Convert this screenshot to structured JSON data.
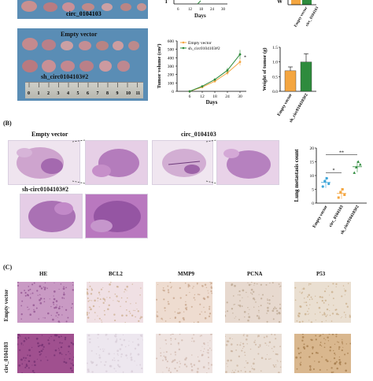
{
  "panel_labels": {
    "b": "(B)",
    "c": "(C)"
  },
  "panelA": {
    "photo_label_top": "circ_0104103",
    "photo_label_mid_1": "Empty vector",
    "photo_label_mid_2": "sh_circ0104103#2",
    "ruler_ticks": [
      "0",
      "1",
      "2",
      "3",
      "4",
      "5",
      "6",
      "7",
      "8",
      "9",
      "10",
      "11"
    ],
    "top_chart_partial": {
      "xlabel": "Days",
      "ticks": [
        "6",
        "12",
        "18",
        "24",
        "30"
      ],
      "ylabel_partial": "T"
    },
    "right_top_partial": {
      "ylabel_partial": "W",
      "cat_labels": [
        "Empty vector",
        "circ_0104103"
      ]
    }
  },
  "chart_data": [
    {
      "type": "line",
      "title": "",
      "xlabel": "Days",
      "ylabel": "Tumor volume (cm³)",
      "x": [
        6,
        12,
        18,
        24,
        30
      ],
      "ylim": [
        0,
        600
      ],
      "yticks": [
        "0",
        "100",
        "200",
        "300",
        "400",
        "500",
        "600"
      ],
      "annotation": "*",
      "series": [
        {
          "name": "Empty vector",
          "color": "#f4a640",
          "values": [
            0,
            50,
            120,
            220,
            350
          ]
        },
        {
          "name": "sh_circ0104103#2",
          "color": "#2e8b3d",
          "values": [
            0,
            60,
            140,
            250,
            440
          ]
        }
      ]
    },
    {
      "type": "bar",
      "title": "",
      "ylabel": "Weight of tumor (g)",
      "categories": [
        "Empty vector",
        "sh_circ0104103#2"
      ],
      "ylim": [
        0,
        1.5
      ],
      "yticks": [
        "0.0",
        "0.5",
        "1.0",
        "1.5"
      ],
      "values": [
        0.7,
        1.0
      ],
      "errors": [
        0.13,
        0.28
      ],
      "colors": [
        "#f4a640",
        "#2e8b3d"
      ]
    },
    {
      "type": "scatter",
      "title": "",
      "ylabel": "Lung metastasis count",
      "categories": [
        "Empty vector",
        "circ_0104103",
        "sh_circ0104103#2"
      ],
      "ylim": [
        0,
        20
      ],
      "yticks": [
        "0",
        "5",
        "10",
        "15",
        "20"
      ],
      "colors": [
        "#3da5d9",
        "#f4a640",
        "#2e8b3d"
      ],
      "points": [
        [
          6,
          8,
          9,
          7
        ],
        [
          2,
          4,
          5,
          3
        ],
        [
          11,
          13,
          15,
          14
        ]
      ],
      "means": [
        7.5,
        3.5,
        13.2
      ],
      "sig": [
        {
          "from": 0,
          "to": 1,
          "label": "*"
        },
        {
          "from": 0,
          "to": 2,
          "label": "**"
        }
      ]
    }
  ],
  "panelB": {
    "label_empty": "Empty vector",
    "label_circ": "circ_0104103",
    "label_sh": "sh-circ0104103#2"
  },
  "panelC": {
    "columns": [
      "HE",
      "BCL2",
      "MMP9",
      "PCNA",
      "P53"
    ],
    "rows": [
      "Empty vector",
      "circ_0104103"
    ]
  }
}
